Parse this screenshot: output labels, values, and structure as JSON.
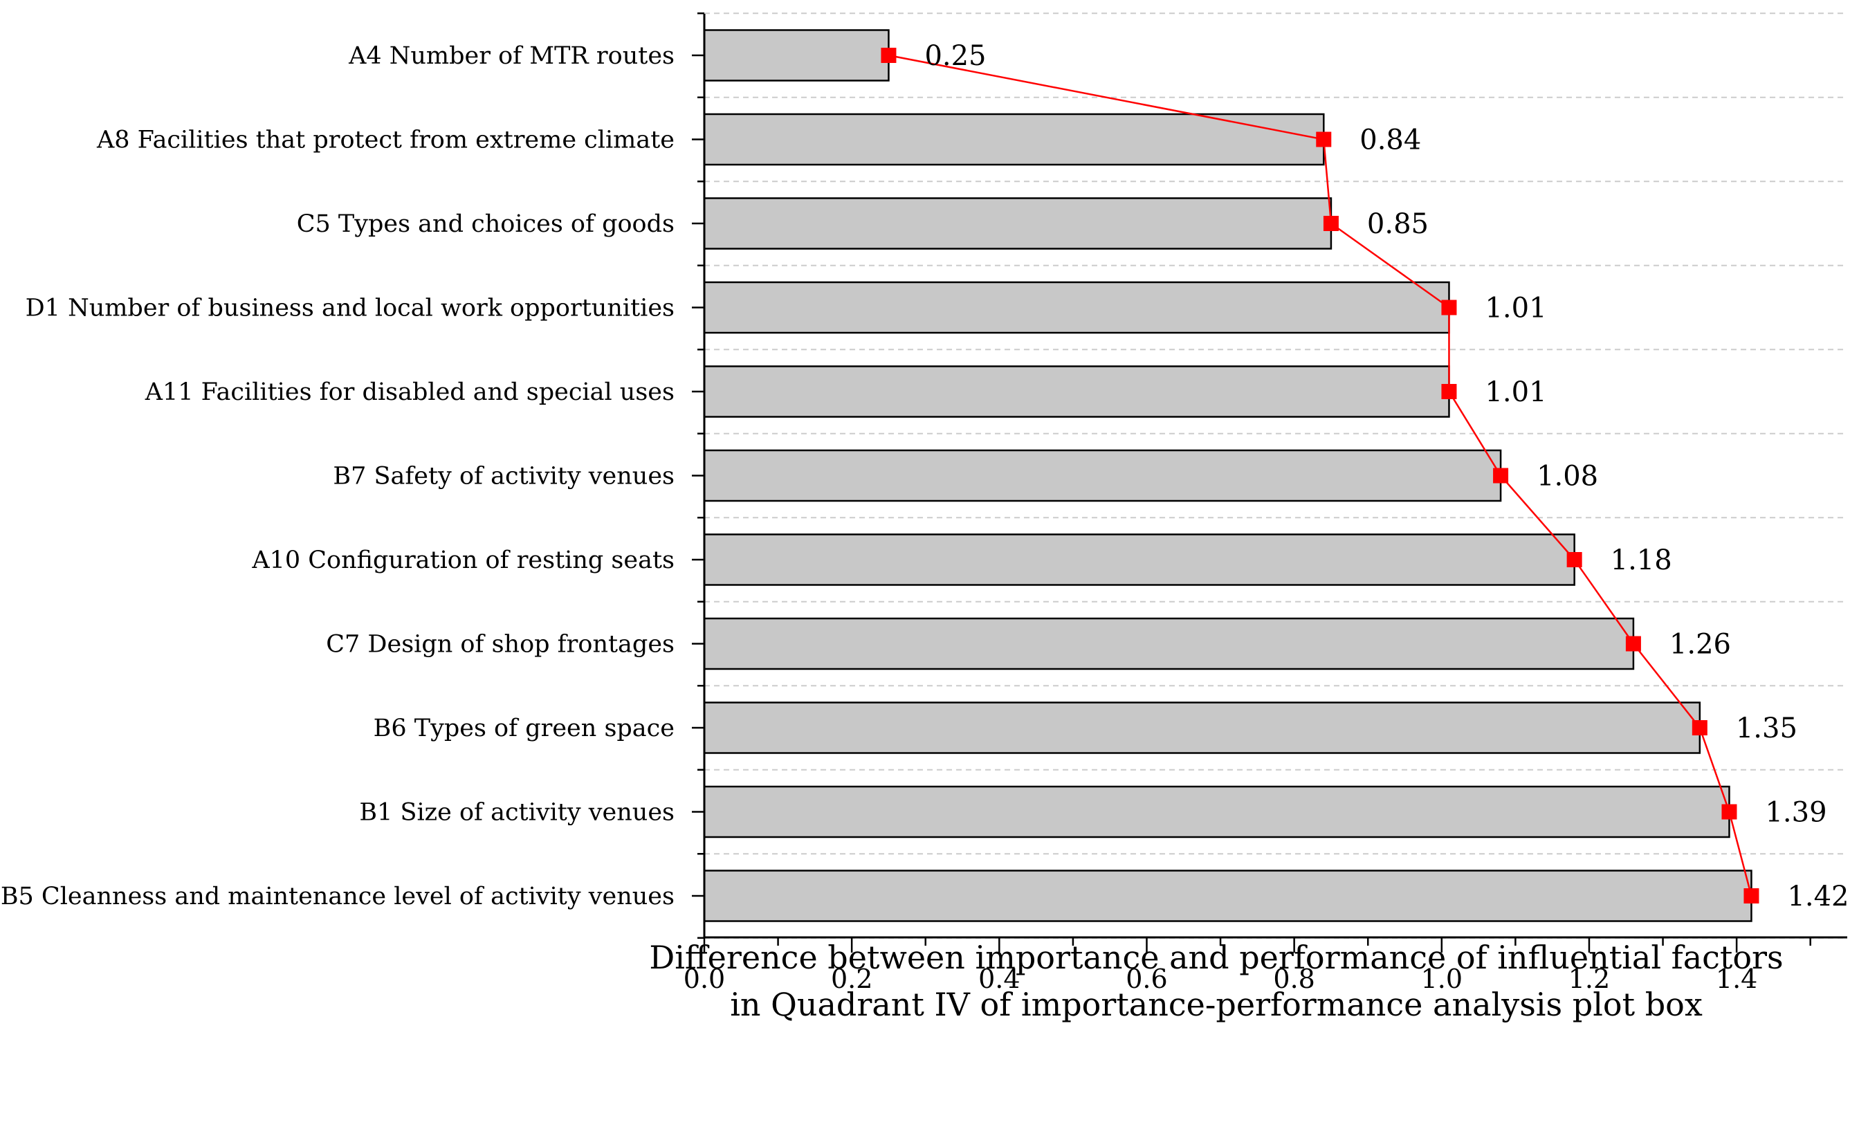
{
  "chart_data": {
    "type": "bar",
    "orientation": "horizontal",
    "categories": [
      "A4 Number of MTR routes",
      "A8 Facilities that protect from extreme climate",
      "C5 Types and choices of goods",
      "D1 Number of business and local work opportunities",
      "A11 Facilities for disabled and special uses",
      "B7 Safety of activity venues",
      "A10 Configuration of resting seats",
      "C7 Design of shop frontages",
      "B6 Types of green space",
      "B1 Size of activity venues",
      "B5 Cleanness and maintenance level of activity venues"
    ],
    "values": [
      0.25,
      0.84,
      0.85,
      1.01,
      1.01,
      1.08,
      1.18,
      1.26,
      1.35,
      1.39,
      1.42
    ],
    "value_labels": [
      "0.25",
      "0.84",
      "0.85",
      "1.01",
      "1.01",
      "1.08",
      "1.18",
      "1.26",
      "1.35",
      "1.39",
      "1.42"
    ],
    "xlim": [
      0,
      1.55
    ],
    "xticks": [
      "0.0",
      "0.2",
      "0.4",
      "0.6",
      "0.8",
      "1.0",
      "1.2",
      "1.4"
    ],
    "xlabel_line1": "Difference between importance and performance of influential factors",
    "xlabel_line2": "in Quadrant IV of importance-performance analysis plot box",
    "ylabel": "",
    "grid": "horizontal dashed",
    "overlay_line": {
      "type": "line",
      "marker": "square",
      "color": "#ff0000"
    },
    "colors": {
      "bar_fill": "#c8c8c8",
      "bar_stroke": "#000000",
      "line": "#ff0000",
      "marker": "#ff0000",
      "grid": "#cccccc"
    }
  }
}
